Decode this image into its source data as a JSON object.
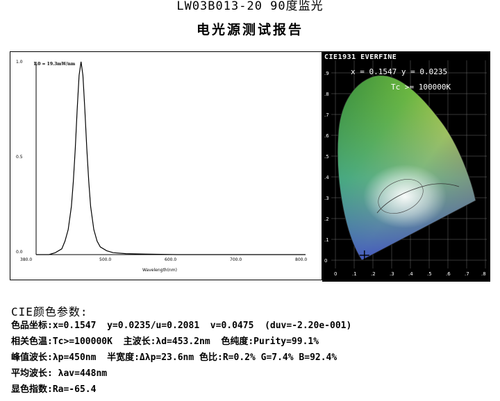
{
  "header": {
    "title": "LW03B013-20 90度监光",
    "subtitle": "电光源测试报告"
  },
  "spectrum": {
    "peak_annotation": "1.0 = 19.3mW/nm",
    "y_ticks": [
      "1.0",
      "0.5",
      "0.0"
    ],
    "x_ticks": [
      "380.0",
      "500.0",
      "600.0",
      "700.0",
      "800.0"
    ],
    "x_axis_label": "Wavelength(nm)"
  },
  "chart_data": {
    "type": "line",
    "title": "",
    "xlabel": "Wavelength(nm)",
    "ylabel": "",
    "xlim": [
      380,
      800
    ],
    "ylim": [
      0,
      1
    ],
    "peak_nm": 450,
    "fwhm_nm": 23.6,
    "series": [
      {
        "x": [
          380,
          400,
          410,
          420,
          425,
          430,
          435,
          438,
          441,
          444,
          447,
          450,
          453,
          456,
          459,
          462,
          465,
          470,
          475,
          480,
          490,
          500,
          520,
          550,
          600,
          700,
          800
        ],
        "values": [
          0.0,
          0.0,
          0.01,
          0.03,
          0.07,
          0.13,
          0.25,
          0.38,
          0.55,
          0.75,
          0.93,
          1.0,
          0.93,
          0.75,
          0.55,
          0.38,
          0.25,
          0.13,
          0.07,
          0.04,
          0.02,
          0.01,
          0.005,
          0.003,
          0.0,
          0.0,
          0.0
        ]
      }
    ]
  },
  "cie": {
    "label": "CIE1931 EVERFINE",
    "xy_text": "x = 0.1547 y = 0.0235",
    "tc_text": "Tc >= 100000K",
    "x_ticks": [
      "0",
      ".1",
      ".2",
      ".3",
      ".4",
      ".5",
      ".6",
      ".7",
      ".8"
    ],
    "y_ticks": [
      ".9",
      ".8",
      ".7",
      ".6",
      ".5",
      ".4",
      ".3",
      ".2",
      ".1",
      "0"
    ],
    "point": {
      "x": 0.1547,
      "y": 0.0235
    }
  },
  "params": {
    "heading": "CIE颜色参数:",
    "line1": "色品坐标:x=0.1547  y=0.0235/u=0.2081  v=0.0475  (duv=-2.20e-001)",
    "line2": "相关色温:Tc>=100000K  主波长:λd=453.2nm  色纯度:Purity=99.1%",
    "line3": "峰值波长:λp=450nm  半宽度:Δλp=23.6nm 色比:R=0.2% G=7.4% B=92.4%",
    "line4": "平均波长: λav=448nm",
    "line5": "显色指数:Ra=-65.4"
  }
}
